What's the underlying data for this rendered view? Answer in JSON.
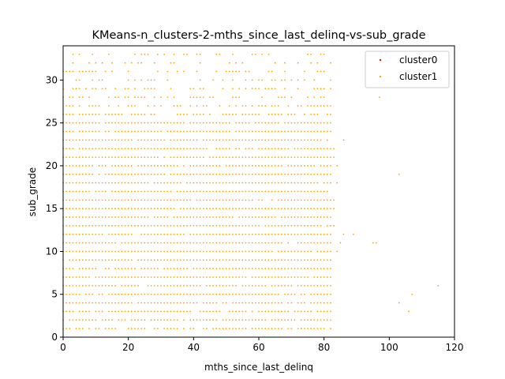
{
  "chart_data": {
    "type": "scatter",
    "title": "KMeans-n_clusters-2-mths_since_last_delinq-vs-sub_grade",
    "xlabel": "mths_since_last_delinq",
    "ylabel": "sub_grade",
    "xlim": [
      0,
      120
    ],
    "ylim": [
      0,
      34
    ],
    "xticks": [
      0,
      20,
      40,
      60,
      80,
      100,
      120
    ],
    "yticks": [
      0,
      5,
      10,
      15,
      20,
      25,
      30
    ],
    "grid": false,
    "legend_position": "top-right",
    "series": [
      {
        "name": "cluster0",
        "color": "#ff0000",
        "points": []
      },
      {
        "name": "cluster1",
        "color": "#ffa500",
        "bands": [
          {
            "y": 0,
            "x_from": 0,
            "x_to": 0
          },
          {
            "y": 1,
            "x_from": 0,
            "x_to": 82
          },
          {
            "y": 2,
            "x_from": 0,
            "x_to": 82
          },
          {
            "y": 3,
            "x_from": 0,
            "x_to": 82
          },
          {
            "y": 4,
            "x_from": 0,
            "x_to": 82
          },
          {
            "y": 5,
            "x_from": 0,
            "x_to": 82
          },
          {
            "y": 6,
            "x_from": 0,
            "x_to": 82
          },
          {
            "y": 7,
            "x_from": 0,
            "x_to": 82
          },
          {
            "y": 8,
            "x_from": 0,
            "x_to": 82
          },
          {
            "y": 9,
            "x_from": 0,
            "x_to": 82
          },
          {
            "y": 10,
            "x_from": 0,
            "x_to": 82
          },
          {
            "y": 11,
            "x_from": 0,
            "x_to": 82
          },
          {
            "y": 12,
            "x_from": 0,
            "x_to": 82
          },
          {
            "y": 13,
            "x_from": 0,
            "x_to": 82
          },
          {
            "y": 14,
            "x_from": 0,
            "x_to": 82
          },
          {
            "y": 15,
            "x_from": 0,
            "x_to": 82
          },
          {
            "y": 16,
            "x_from": 0,
            "x_to": 82
          },
          {
            "y": 17,
            "x_from": 0,
            "x_to": 82
          },
          {
            "y": 18,
            "x_from": 0,
            "x_to": 82
          },
          {
            "y": 19,
            "x_from": 0,
            "x_to": 82
          },
          {
            "y": 20,
            "x_from": 0,
            "x_to": 82
          },
          {
            "y": 21,
            "x_from": 0,
            "x_to": 82
          },
          {
            "y": 22,
            "x_from": 0,
            "x_to": 82
          },
          {
            "y": 23,
            "x_from": 0,
            "x_to": 82
          },
          {
            "y": 24,
            "x_from": 0,
            "x_to": 82
          },
          {
            "y": 25,
            "x_from": 0,
            "x_to": 82
          },
          {
            "y": 26,
            "x_from": 0,
            "x_to": 82
          },
          {
            "y": 27,
            "x_from": 0,
            "x_to": 82
          },
          {
            "y": 28,
            "x_from": 0,
            "x_to": 82
          },
          {
            "y": 29,
            "x_from": 0,
            "x_to": 82
          },
          {
            "y": 30,
            "x_from": 0,
            "x_to": 82
          },
          {
            "y": 31,
            "x_from": 0,
            "x_to": 82
          },
          {
            "y": 32,
            "x_from": 0,
            "x_to": 82
          },
          {
            "y": 33,
            "x_from": 0,
            "x_to": 82
          }
        ],
        "density": [
          0,
          0.75,
          0.85,
          0.9,
          0.9,
          0.92,
          0.92,
          0.92,
          0.95,
          0.95,
          0.95,
          0.95,
          0.95,
          0.95,
          0.95,
          0.95,
          0.95,
          0.95,
          0.95,
          0.95,
          0.95,
          0.95,
          0.92,
          0.9,
          0.9,
          0.88,
          0.7,
          0.55,
          0.5,
          0.5,
          0.45,
          0.4,
          0.35,
          0.3
        ],
        "points": [
          [
            115,
            6
          ],
          [
            107,
            5
          ],
          [
            106,
            3
          ],
          [
            103,
            4
          ],
          [
            103,
            19
          ],
          [
            97,
            28
          ],
          [
            96,
            11
          ],
          [
            95,
            11
          ],
          [
            89,
            12
          ],
          [
            86,
            12
          ],
          [
            85,
            11
          ],
          [
            84,
            10
          ],
          [
            86,
            23
          ],
          [
            84,
            20
          ],
          [
            84,
            18
          ],
          [
            83,
            16
          ],
          [
            83,
            13
          ],
          [
            83,
            15
          ],
          [
            83,
            21
          ],
          [
            83,
            22
          ]
        ]
      }
    ]
  }
}
